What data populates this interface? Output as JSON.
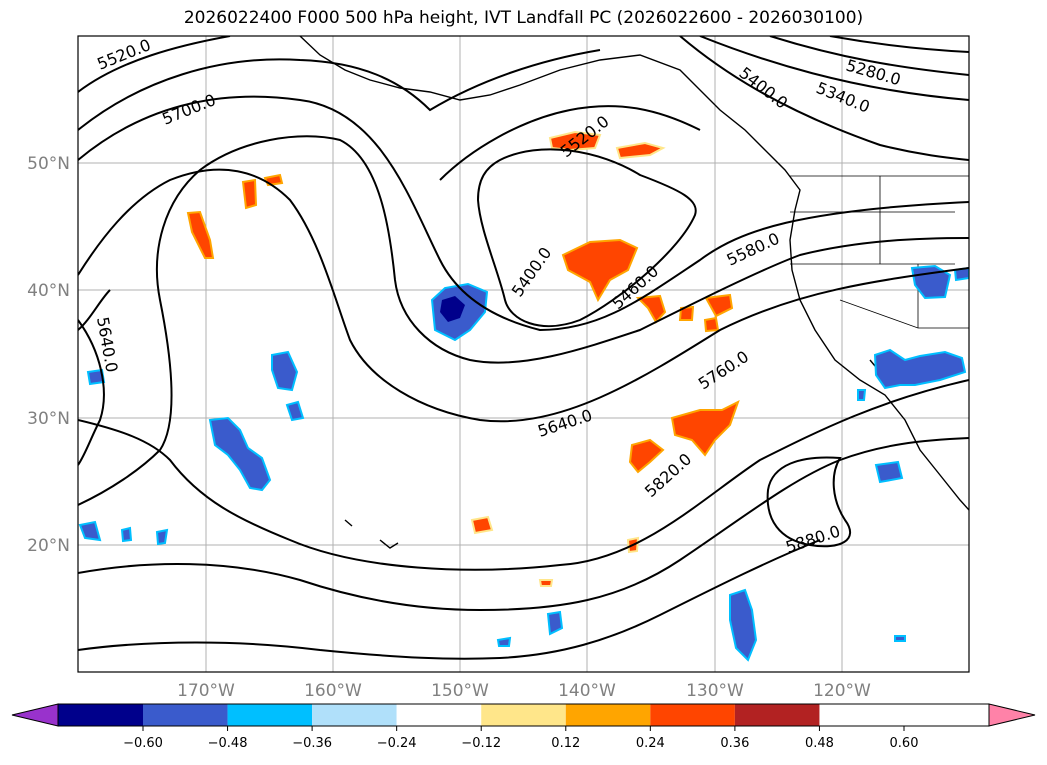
{
  "title": "2026022400 F000 500 hPa height, IVT Landfall PC (2026022600 - 2026030100)",
  "map": {
    "lon_labels": [
      "170°W",
      "160°W",
      "150°W",
      "140°W",
      "130°W",
      "120°W"
    ],
    "lat_labels": [
      "50°N",
      "40°N",
      "30°N",
      "20°N"
    ],
    "contour_labels": [
      "5520.0",
      "5700.0",
      "5640.0",
      "5520.0",
      "5400.0",
      "5460.0",
      "5580.0",
      "5640.0",
      "5760.0",
      "5820.0",
      "5880.0",
      "5400.0",
      "5340.0",
      "5280.0"
    ]
  },
  "colorbar": {
    "ticks": [
      "−0.60",
      "−0.48",
      "−0.36",
      "−0.24",
      "−0.12",
      "0.12",
      "0.24",
      "0.36",
      "0.48",
      "0.60"
    ],
    "colors": [
      "#9932cc",
      "#00008b",
      "#3a5bcc",
      "#00bfff",
      "#b0e0fa",
      "#ffffff",
      "#ffe68a",
      "#ffa500",
      "#ff4500",
      "#b22222",
      "#ff82a8"
    ]
  }
}
